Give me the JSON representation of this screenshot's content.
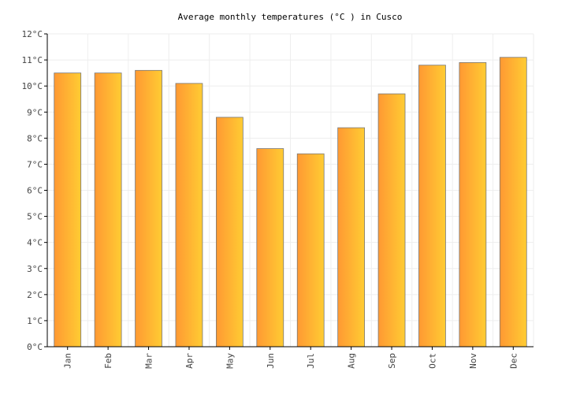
{
  "chart_data": {
    "type": "bar",
    "title": "Average monthly temperatures (°C ) in Cusco",
    "xlabel": "",
    "ylabel": "",
    "categories": [
      "Jan",
      "Feb",
      "Mar",
      "Apr",
      "May",
      "Jun",
      "Jul",
      "Aug",
      "Sep",
      "Oct",
      "Nov",
      "Dec"
    ],
    "values": [
      10.5,
      10.5,
      10.6,
      10.1,
      8.8,
      7.6,
      7.4,
      8.4,
      9.7,
      10.8,
      10.9,
      11.1
    ],
    "ylim": [
      0,
      12
    ],
    "yticks": [
      "0°C",
      "1°C",
      "2°C",
      "3°C",
      "4°C",
      "5°C",
      "6°C",
      "7°C",
      "8°C",
      "9°C",
      "10°C",
      "11°C",
      "12°C"
    ],
    "grid": true,
    "colors": {
      "bar_left": "#ff9933",
      "bar_right": "#ffcc33",
      "bar_border": "#777777",
      "grid": "#eeeeee"
    }
  }
}
